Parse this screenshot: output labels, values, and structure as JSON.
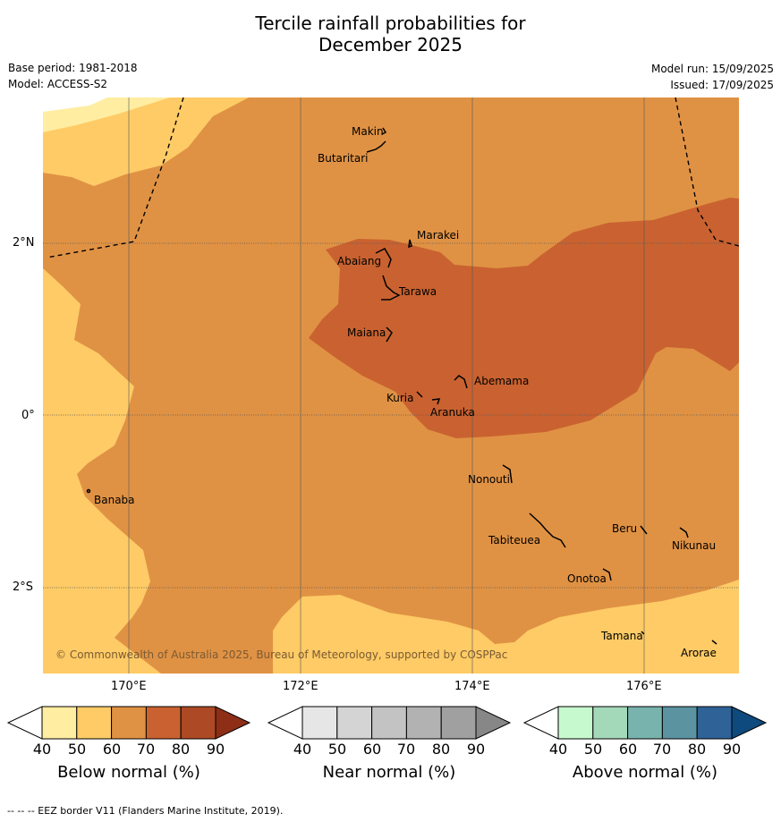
{
  "title": {
    "line1": "Tercile rainfall probabilities for",
    "line2": "December 2025"
  },
  "meta": {
    "base_period": "Base period: 1981-2018",
    "model": "Model: ACCESS-S2",
    "model_run": "Model run: 15/09/2025",
    "issued": "Issued: 17/09/2025"
  },
  "map": {
    "copyright": "© Commonwealth of Australia 2025, Bureau of Meteorology, supported by COSPPac",
    "lon_labels": [
      "170°E",
      "172°E",
      "174°E",
      "176°E"
    ],
    "lat_labels": [
      "2°N",
      "0°",
      "2°S"
    ],
    "islands": [
      "Makin",
      "Butaritari",
      "Marakei",
      "Abaiang",
      "Tarawa",
      "Maiana",
      "Abemama",
      "Kuria",
      "Aranuka",
      "Nonouti",
      "Banaba",
      "Beru",
      "Nikunau",
      "Tabiteuea",
      "Onotoa",
      "Tamana",
      "Arorae"
    ],
    "shading": {
      "dominant_category": "Below normal",
      "classes": [
        "50-60",
        "60-70",
        "70-80"
      ],
      "colors": [
        "#fecb66",
        "#e09244",
        "#c96230"
      ]
    }
  },
  "colorbars": [
    {
      "title": "Below normal (%)",
      "ticks": [
        "40",
        "50",
        "60",
        "70",
        "80",
        "90"
      ],
      "colors": [
        "#ffffff",
        "#ffeda1",
        "#fecb66",
        "#e09244",
        "#c96230",
        "#ad4a25",
        "#8e2e17"
      ]
    },
    {
      "title": "Near normal (%)",
      "ticks": [
        "40",
        "50",
        "60",
        "70",
        "80",
        "90"
      ],
      "colors": [
        "#ffffff",
        "#e6e6e6",
        "#d4d4d4",
        "#c3c3c3",
        "#b2b2b2",
        "#a0a0a0",
        "#878787"
      ]
    },
    {
      "title": "Above normal (%)",
      "ticks": [
        "40",
        "50",
        "60",
        "70",
        "80",
        "90"
      ],
      "colors": [
        "#ffffff",
        "#c7f9ce",
        "#a3d9b9",
        "#79b3ad",
        "#5b93a1",
        "#2f6296",
        "#0e4a7e"
      ]
    }
  ],
  "footer": "--  --  -- EEZ border V11 (Flanders Marine Institute, 2019)."
}
